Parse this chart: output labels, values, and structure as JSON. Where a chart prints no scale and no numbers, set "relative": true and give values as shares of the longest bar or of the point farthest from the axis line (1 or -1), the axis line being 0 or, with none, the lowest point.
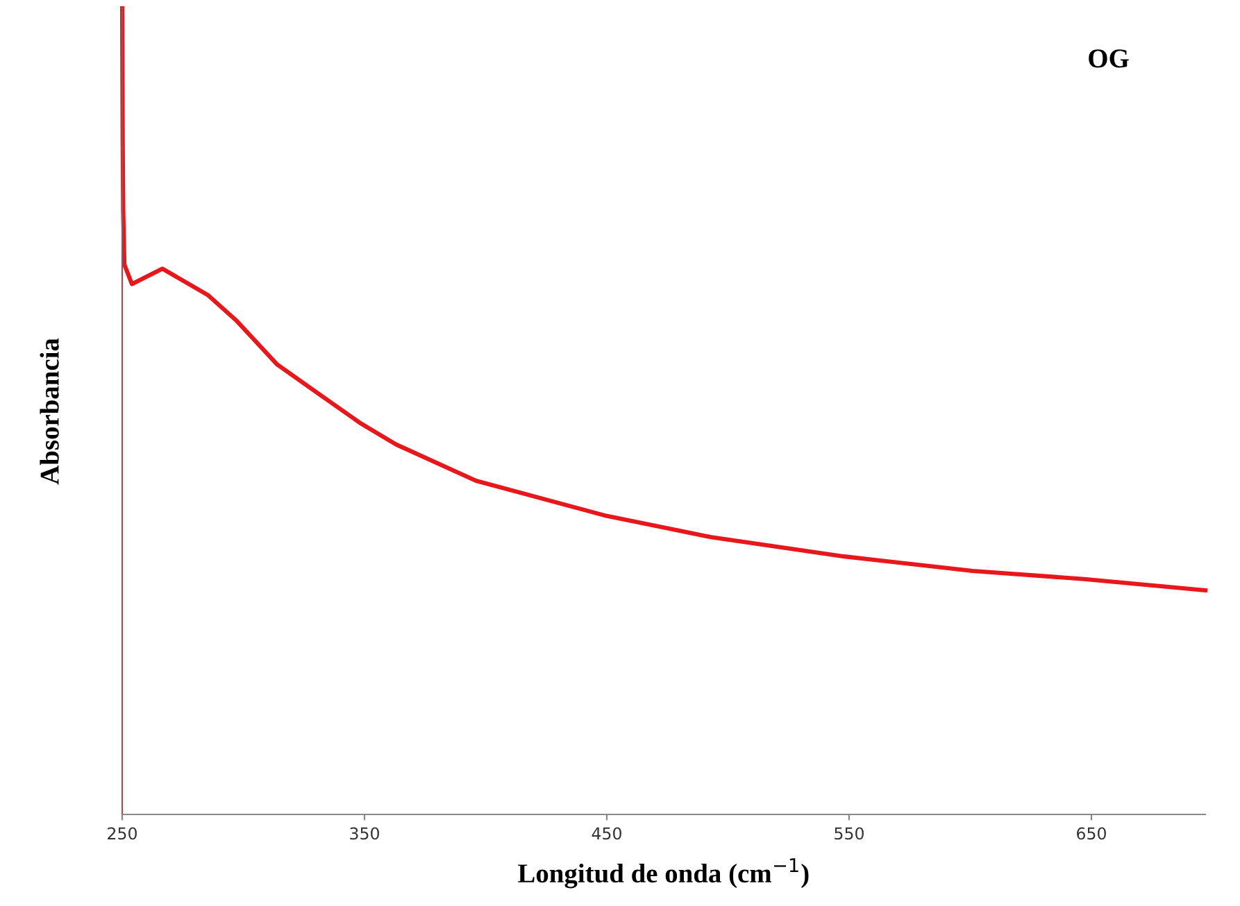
{
  "chart_data": {
    "type": "line",
    "relative": true,
    "xlabel": "Longitud de onda (cm$^{−1}$)",
    "ylabel": "Absorbancia",
    "annotations": [
      "OG"
    ],
    "xlim": [
      250,
      697
    ],
    "xticks": [
      250,
      350,
      450,
      550,
      650
    ],
    "grid": false,
    "legend": false,
    "marker": "none",
    "line_style": "solid",
    "series": [
      {
        "color": "#e8171b",
        "x": [
          250.0,
          250.2,
          250.4,
          250.9,
          254.0,
          266.6,
          285.5,
          297,
          314,
          331,
          348,
          363,
          396,
          449,
          493,
          548,
          601,
          647,
          697
        ],
        "values": [
          1.0,
          0.837,
          0.751,
          0.682,
          0.658,
          0.677,
          0.644,
          0.613,
          0.558,
          0.522,
          0.486,
          0.459,
          0.414,
          0.371,
          0.344,
          0.32,
          0.302,
          0.292,
          0.278
        ]
      }
    ]
  }
}
